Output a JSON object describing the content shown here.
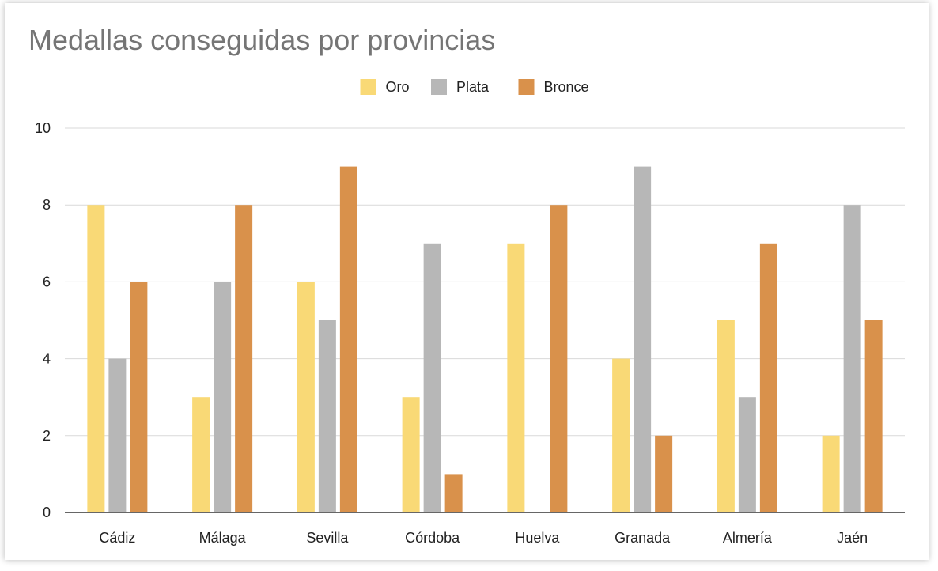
{
  "chart_data": {
    "type": "bar",
    "title": "Medallas conseguidas por provincias",
    "xlabel": "",
    "ylabel": "",
    "categories": [
      "Cádiz",
      "Málaga",
      "Sevilla",
      "Córdoba",
      "Huelva",
      "Granada",
      "Almería",
      "Jaén"
    ],
    "series": [
      {
        "name": "Oro",
        "color": "#f9d976",
        "values": [
          8,
          3,
          6,
          3,
          7,
          4,
          5,
          2
        ]
      },
      {
        "name": "Plata",
        "color": "#b7b7b7",
        "values": [
          4,
          6,
          5,
          7,
          0,
          9,
          3,
          8
        ]
      },
      {
        "name": "Bronce",
        "color": "#d9914b",
        "values": [
          6,
          8,
          9,
          1,
          8,
          2,
          7,
          5
        ]
      }
    ],
    "ylim": [
      0,
      10
    ],
    "yticks": [
      "0",
      "2",
      "4",
      "6",
      "8",
      "10"
    ],
    "grid": true,
    "legend_position": "top-center"
  }
}
